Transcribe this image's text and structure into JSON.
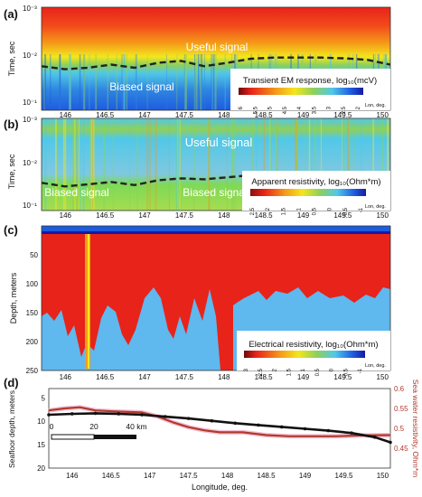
{
  "colors": {
    "red": "#e8231a",
    "orange": "#f59a1a",
    "yellow": "#f3e61c",
    "green": "#8fd05a",
    "lightgreen": "#7ed957",
    "cyan": "#50c8e8",
    "skyblue": "#5fa8e8",
    "blue": "#1e5be0",
    "navy": "#161aa0",
    "white": "#ffffff",
    "seafloor": "#111111",
    "seawater": "#b03a2e",
    "boundary": "#222222"
  },
  "chart_data": [
    {
      "id": "a",
      "type": "heatmap",
      "panel_label": "(a)",
      "ylabel": "Time, sec",
      "yscale": "log",
      "yticks": [
        "10⁻³",
        "10⁻²",
        "10⁻¹"
      ],
      "xticks": [
        "146",
        "146.5",
        "147",
        "147.5",
        "148",
        "148.5",
        "149",
        "149.5",
        "150"
      ],
      "xlim": [
        145.7,
        150.1
      ],
      "annotations": [
        "Useful signal",
        "Biased signal"
      ],
      "colorbar": {
        "title": "Transient EM response, log₁₀(mcV)",
        "ticks": [
          "6",
          "5.5",
          "5",
          "4.5",
          "4",
          "3.5",
          "3",
          "2.5",
          "2"
        ],
        "axis_label": "Lon, deg."
      },
      "boundary_time_sec": [
        0.014,
        0.016,
        0.015,
        0.013,
        0.015,
        0.012,
        0.011,
        0.014,
        0.012,
        0.01,
        0.0095,
        0.0095,
        0.0095,
        0.0098,
        0.0105,
        0.013
      ]
    },
    {
      "id": "b",
      "type": "heatmap",
      "panel_label": "(b)",
      "ylabel": "Time, sec",
      "yscale": "log",
      "yticks": [
        "10⁻³",
        "10⁻²",
        "10⁻¹"
      ],
      "xticks": [
        "146",
        "146.5",
        "147",
        "147.5",
        "148",
        "148.5",
        "149",
        "149.5",
        "150"
      ],
      "xlim": [
        145.7,
        150.1
      ],
      "annotations": [
        "Useful signal",
        "Biased signal",
        "Biased signal"
      ],
      "colorbar": {
        "title": "Apparent resistivity, log₁₀(Ohm*m)",
        "ticks": [
          "2.5",
          "2",
          "1.5",
          "1",
          "0.5",
          "0",
          "-0.5",
          "-1"
        ],
        "axis_label": "Lon, deg."
      },
      "boundary_time_sec": [
        0.025,
        0.03,
        0.027,
        0.024,
        0.028,
        0.022,
        0.02,
        0.021,
        0.019,
        0.017,
        0.016,
        0.016,
        0.015,
        0.016,
        0.017,
        0.021
      ]
    },
    {
      "id": "c",
      "type": "heatmap",
      "panel_label": "(c)",
      "ylabel": "Depth, meters",
      "yticks": [
        "50",
        "100",
        "150",
        "200",
        "250"
      ],
      "ylim": [
        0,
        250
      ],
      "xticks": [
        "146",
        "146.5",
        "147",
        "147.5",
        "148",
        "148.5",
        "149",
        "149.5",
        "150"
      ],
      "xlim": [
        145.7,
        150.1
      ],
      "colorbar": {
        "title": "Electrical resistivity, log₁₀(Ohm*m)",
        "ticks": [
          "3",
          "2.5",
          "2",
          "1.5",
          "1",
          "0.5",
          "0",
          "-0.5",
          "-1"
        ],
        "axis_label": "Lon, deg."
      }
    },
    {
      "id": "d",
      "type": "line",
      "panel_label": "(d)",
      "xlabel": "Longitude, deg.",
      "ylabel": "Seafloor depth, meters",
      "y2label": "Sea water resistivity, Ohm*m",
      "xticks": [
        "146",
        "146.5",
        "147",
        "147.5",
        "148",
        "148.5",
        "149",
        "149.5",
        "150"
      ],
      "yticks": [
        "5",
        "10",
        "15",
        "20"
      ],
      "y2ticks": [
        "0.45",
        "0.5",
        "0.55",
        "0.6"
      ],
      "xlim": [
        145.7,
        150.1
      ],
      "ylim": [
        20,
        3
      ],
      "y2lim": [
        0.4,
        0.6
      ],
      "scalebar": [
        "0",
        "20",
        "40 km"
      ],
      "series": [
        {
          "x": [
            145.7,
            146.0,
            146.3,
            146.6,
            146.9,
            147.2,
            147.5,
            147.8,
            148.1,
            148.4,
            148.7,
            149.0,
            149.3,
            149.6,
            149.9,
            150.1
          ],
          "y": [
            8.6,
            8.4,
            8.3,
            8.4,
            8.6,
            9.0,
            9.4,
            9.9,
            10.4,
            10.8,
            11.2,
            11.6,
            12.0,
            12.5,
            13.4,
            14.5
          ]
        },
        {
          "x": [
            145.7,
            145.9,
            146.1,
            146.3,
            146.6,
            146.9,
            147.1,
            147.3,
            147.5,
            147.7,
            147.9,
            148.2,
            148.5,
            148.8,
            149.1,
            149.4,
            149.7,
            150.1
          ],
          "y": [
            0.545,
            0.55,
            0.553,
            0.545,
            0.542,
            0.54,
            0.53,
            0.515,
            0.503,
            0.495,
            0.49,
            0.49,
            0.483,
            0.48,
            0.48,
            0.48,
            0.482,
            0.483
          ]
        }
      ]
    }
  ]
}
